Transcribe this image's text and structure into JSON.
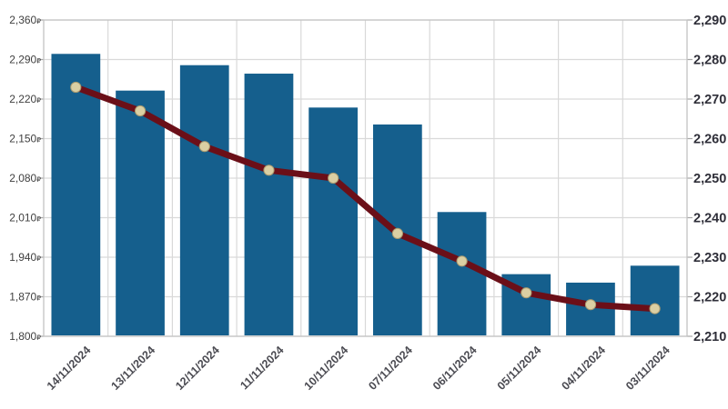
{
  "chart_data": {
    "type": "bar+line",
    "title": "",
    "legend": "none",
    "categories": [
      "14/11/2024",
      "13/11/2024",
      "12/11/2024",
      "11/11/2024",
      "10/11/2024",
      "07/11/2024",
      "06/11/2024",
      "05/11/2024",
      "04/11/2024",
      "03/11/2024"
    ],
    "series": [
      {
        "name": "price-bars",
        "type": "bar",
        "axis": "left",
        "color": "#155f8d",
        "values": [
          2300,
          2235,
          2280,
          2265,
          2205,
          2175,
          2020,
          1910,
          1895,
          1925
        ]
      },
      {
        "name": "trend-line",
        "type": "line",
        "axis": "right",
        "color": "#6b0f18",
        "marker_color": "#dbcfa3",
        "marker_edge_color": "#a89a6f",
        "values": [
          2273,
          2267,
          2258,
          2252,
          2250,
          2236,
          2229,
          2221,
          2218,
          2217
        ]
      }
    ],
    "left_axis": {
      "min": 1800,
      "max": 2360,
      "step": 70,
      "unit_suffix": "₽",
      "tick_labels": [
        "1,800",
        "1,870",
        "1,940",
        "2,010",
        "2,080",
        "2,150",
        "2,220",
        "2,290",
        "2,360"
      ]
    },
    "right_axis": {
      "min": 2210,
      "max": 2290,
      "step": 10,
      "tick_labels": [
        "2,210",
        "2,220",
        "2,230",
        "2,240",
        "2,250",
        "2,260",
        "2,270",
        "2,280",
        "2,290"
      ]
    },
    "grid": {
      "horizontal": true,
      "vertical": true
    },
    "colors": {
      "grid_line": "#d9d9d9",
      "plot_border": "#c4c4c4",
      "axis_tick": "#a6a6a6",
      "left_label_text": "#404040",
      "right_label_text": "#2e2e38",
      "date_label_text": "#4b4b52",
      "background": "#ffffff"
    }
  }
}
